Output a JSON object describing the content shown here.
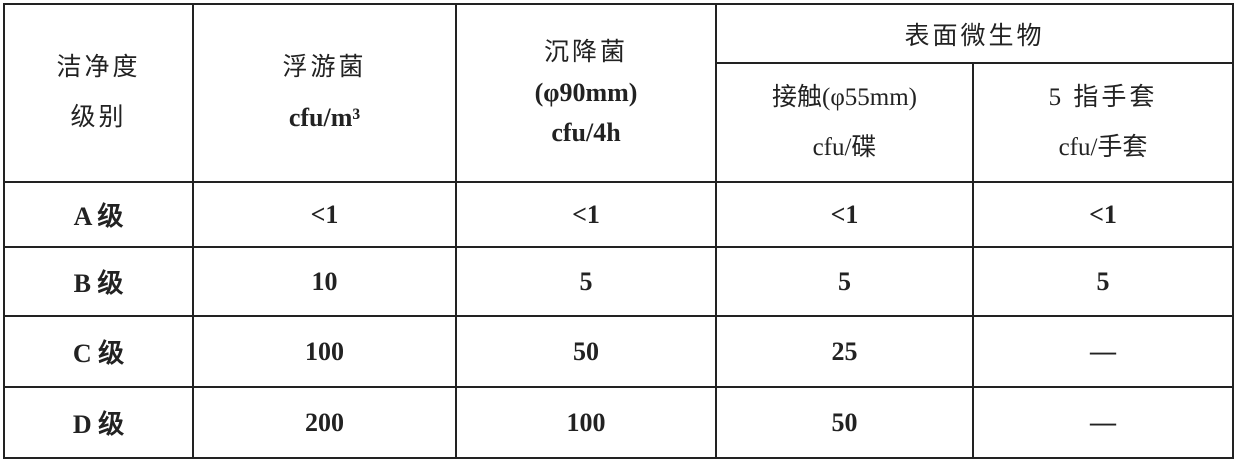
{
  "table": {
    "headers": {
      "grade": [
        "洁净度",
        "级别"
      ],
      "airborne": [
        "浮游菌",
        "cfu/m³"
      ],
      "settling": [
        "沉降菌",
        "(φ90mm)",
        "cfu/4h"
      ],
      "surface_group": "表面微生物",
      "contact": [
        "接触(φ55mm)",
        "cfu/碟"
      ],
      "glove": [
        "5 指手套",
        "cfu/手套"
      ]
    },
    "rows": [
      {
        "grade": "A 级",
        "airborne": "<1",
        "settling": "<1",
        "contact": "<1",
        "glove": "<1"
      },
      {
        "grade": "B 级",
        "airborne": "10",
        "settling": "5",
        "contact": "5",
        "glove": "5"
      },
      {
        "grade": "C 级",
        "airborne": "100",
        "settling": "50",
        "contact": "25",
        "glove": "—"
      },
      {
        "grade": "D 级",
        "airborne": "200",
        "settling": "100",
        "contact": "50",
        "glove": "—"
      }
    ]
  }
}
